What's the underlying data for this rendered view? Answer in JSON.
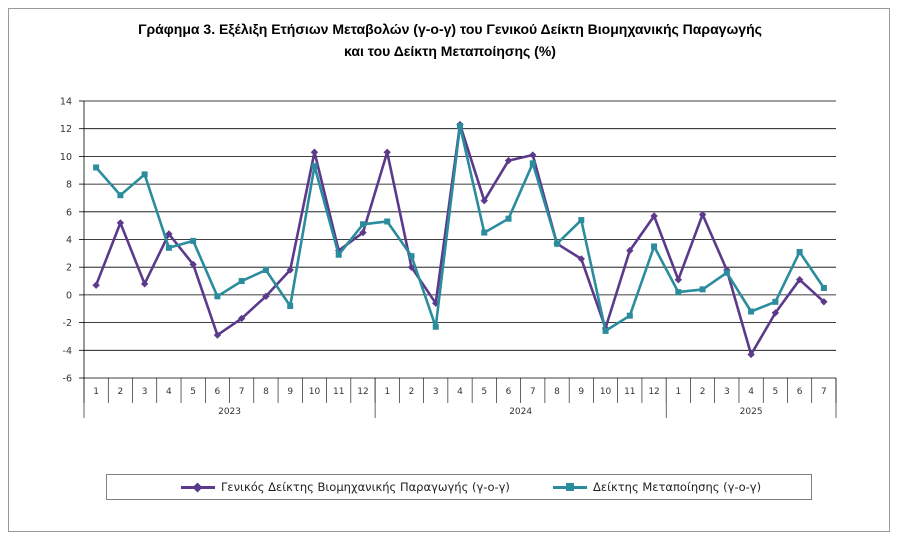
{
  "title_line1": "Γράφημα 3. Εξέλιξη Ετήσιων Μεταβολών (γ-ο-γ) του Γενικού Δείκτη Βιομηχανικής Παραγωγής",
  "title_line2": "και του Δείκτη Μεταποίησης (%)",
  "chart_data": {
    "type": "line",
    "title": "Γράφημα 3. Εξέλιξη Ετήσιων Μεταβολών (γ-ο-γ) του Γενικού Δείκτη Βιομηχανικής Παραγωγής και του Δείκτη Μεταποίησης (%)",
    "categories": [
      "1",
      "2",
      "3",
      "4",
      "5",
      "6",
      "7",
      "8",
      "9",
      "10",
      "11",
      "12",
      "1",
      "2",
      "3",
      "4",
      "5",
      "6",
      "7",
      "8",
      "9",
      "10",
      "11",
      "12",
      "1",
      "2",
      "3",
      "4",
      "5",
      "6",
      "7"
    ],
    "year_groups": [
      {
        "label": "2023",
        "count": 12
      },
      {
        "label": "2024",
        "count": 12
      },
      {
        "label": "2025",
        "count": 7
      }
    ],
    "ylim": [
      -6,
      14
    ],
    "yticks": [
      "-6",
      "-4",
      "-2",
      "0",
      "2",
      "4",
      "6",
      "8",
      "10",
      "12",
      "14"
    ],
    "grid": true,
    "legend_position": "bottom",
    "series": [
      {
        "name": "Γενικός Δείκτης Βιομηχανικής Παραγωγής (γ-ο-γ)",
        "color": "#5B3A8C",
        "marker": "diamond",
        "values": [
          0.7,
          5.2,
          0.8,
          4.4,
          2.2,
          -2.9,
          -1.7,
          -0.1,
          1.8,
          10.3,
          3.2,
          4.5,
          10.3,
          2.0,
          -0.6,
          12.3,
          6.8,
          9.7,
          10.1,
          3.7,
          2.6,
          -2.4,
          3.2,
          5.7,
          1.1,
          5.8,
          1.8,
          -4.3,
          -1.3,
          1.1,
          -0.5
        ]
      },
      {
        "name": "Δείκτης Μεταποίησης (γ-ο-γ)",
        "color": "#2A8C9C",
        "marker": "square",
        "values": [
          9.2,
          7.2,
          8.7,
          3.4,
          3.9,
          -0.1,
          1.0,
          1.8,
          -0.8,
          9.3,
          2.9,
          5.1,
          5.3,
          2.8,
          -2.3,
          12.2,
          4.5,
          5.5,
          9.5,
          3.7,
          5.4,
          -2.6,
          -1.5,
          3.5,
          0.2,
          0.4,
          1.6,
          -1.2,
          -0.5,
          3.1,
          0.5
        ]
      }
    ]
  }
}
